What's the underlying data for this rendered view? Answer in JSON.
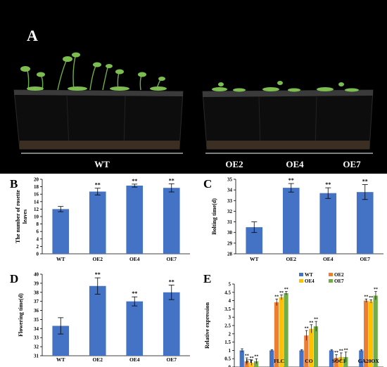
{
  "photo": {
    "panel_letter": "A",
    "group_labels": [
      "WT",
      "OE2",
      "OE4",
      "OE7"
    ]
  },
  "colors": {
    "bar": "#4472c4",
    "wt": "#4472c4",
    "oe2": "#ed7d31",
    "oe4": "#ffc000",
    "oe7": "#70ad47",
    "background_photo": "#000000"
  },
  "chart_data": [
    {
      "id": "B",
      "panel_letter": "B",
      "type": "bar",
      "categories": [
        "WT",
        "OE2",
        "OE4",
        "OE7"
      ],
      "values": [
        12.0,
        16.7,
        18.3,
        17.7
      ],
      "errors": [
        0.7,
        0.9,
        0.4,
        1.1
      ],
      "significance": [
        "",
        "**",
        "**",
        "**"
      ],
      "ylabel": "The number of rosette leaves",
      "ylim": [
        0,
        20
      ],
      "yticks": [
        0,
        2,
        4,
        6,
        8,
        10,
        12,
        14,
        16,
        18,
        20
      ]
    },
    {
      "id": "C",
      "panel_letter": "C",
      "type": "bar",
      "categories": [
        "WT",
        "OE2",
        "OE4",
        "OE7"
      ],
      "values": [
        30.5,
        34.2,
        33.7,
        33.8
      ],
      "errors": [
        0.5,
        0.4,
        0.5,
        0.7
      ],
      "significance": [
        "",
        "**",
        "**",
        "**"
      ],
      "ylabel": "Bolting time(d)",
      "ylim": [
        28,
        35
      ],
      "yticks": [
        28,
        29,
        30,
        31,
        32,
        33,
        34,
        35
      ]
    },
    {
      "id": "D",
      "panel_letter": "D",
      "type": "bar",
      "categories": [
        "WT",
        "OE2",
        "OE4",
        "OE7"
      ],
      "values": [
        34.3,
        38.7,
        37.0,
        38.0
      ],
      "errors": [
        0.9,
        0.9,
        0.5,
        0.8
      ],
      "significance": [
        "",
        "**",
        "**",
        "**"
      ],
      "ylabel": "Flowering time(d)",
      "ylim": [
        31,
        40
      ],
      "yticks": [
        31,
        32,
        33,
        34,
        35,
        36,
        37,
        38,
        39,
        40
      ]
    },
    {
      "id": "E",
      "panel_letter": "E",
      "type": "bar",
      "categories": [
        "FT",
        "FLC",
        "CO",
        "SOC1",
        "GA20OX"
      ],
      "series": [
        {
          "name": "WT",
          "values": [
            1.0,
            1.0,
            1.0,
            1.0,
            1.0
          ],
          "errors": [
            0.1,
            0.05,
            0.05,
            0.05,
            0.05
          ],
          "significance": [
            "",
            "",
            "",
            "",
            ""
          ]
        },
        {
          "name": "OE2",
          "values": [
            0.35,
            3.9,
            1.9,
            0.55,
            4.0
          ],
          "errors": [
            0.2,
            0.2,
            0.3,
            0.2,
            0.1
          ],
          "significance": [
            "**",
            "**",
            "**",
            "**",
            "**"
          ]
        },
        {
          "name": "OE4",
          "values": [
            0.25,
            4.2,
            2.3,
            0.6,
            3.95
          ],
          "errors": [
            0.15,
            0.15,
            0.25,
            0.25,
            0.1
          ],
          "significance": [
            "**",
            "**",
            "**",
            "**",
            "**"
          ]
        },
        {
          "name": "OE7",
          "values": [
            0.35,
            4.45,
            2.45,
            0.6,
            4.3
          ],
          "errors": [
            0.15,
            0.1,
            0.3,
            0.3,
            0.25
          ],
          "significance": [
            "**",
            "**",
            "**",
            "**",
            "**"
          ]
        }
      ],
      "ylabel": "Relative expression",
      "ylim": [
        0,
        5
      ],
      "yticks": [
        0,
        0.5,
        1,
        1.5,
        2,
        2.5,
        3,
        3.5,
        4,
        4.5,
        5
      ],
      "ytick_labels": [
        "0",
        "0.5",
        "1",
        "1.5",
        "2",
        "2.5",
        "3",
        "3.5",
        "4",
        "4.5",
        "5"
      ],
      "legend_placement": "top-right"
    }
  ]
}
